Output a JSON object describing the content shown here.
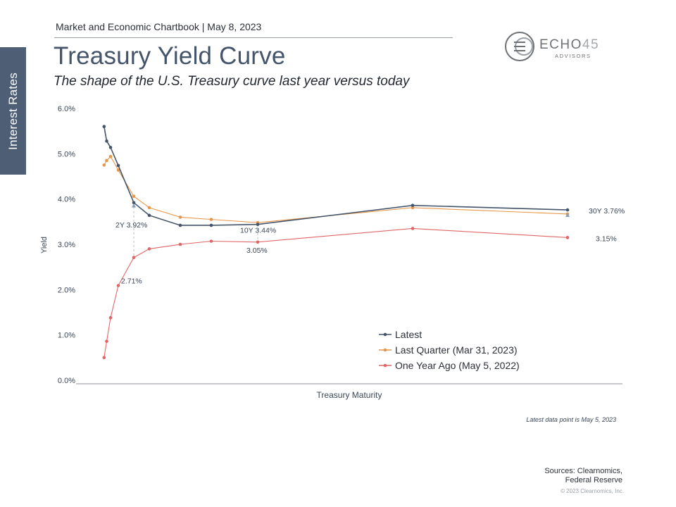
{
  "side_tab": "Interest Rates",
  "header": "Market and Economic Chartbook | May 8, 2023",
  "title": "Treasury Yield Curve",
  "subtitle": "The shape of the U.S. Treasury curve last year versus today",
  "logo": {
    "brand_left": "ECHO",
    "brand_right": "45",
    "tagline": "ADVISORS"
  },
  "footnote": "Latest data point is May 5, 2023",
  "sources_line1": "Sources: Clearnomics,",
  "sources_line2": "Federal Reserve",
  "copyright": "© 2023 Clearnomics, Inc.",
  "chart_data": {
    "type": "line",
    "title": "Treasury Yield Curve",
    "xlabel": "Treasury Maturity",
    "ylabel": "Yield",
    "x_unit": "years",
    "x": [
      0.083,
      0.25,
      0.5,
      1,
      2,
      3,
      5,
      7,
      10,
      20,
      30
    ],
    "ylim": [
      0,
      6
    ],
    "yticks": [
      "0.0%",
      "1.0%",
      "2.0%",
      "3.0%",
      "4.0%",
      "5.0%",
      "6.0%"
    ],
    "series": [
      {
        "name": "Latest",
        "color": "#44546a",
        "marker": "circle",
        "values": [
          5.6,
          5.28,
          5.14,
          4.74,
          3.92,
          3.64,
          3.42,
          3.42,
          3.44,
          3.86,
          3.76
        ]
      },
      {
        "name": "Last Quarter (Mar 31, 2023)",
        "color": "#e8964a",
        "marker": "circle",
        "values": [
          4.75,
          4.85,
          4.94,
          4.64,
          4.06,
          3.81,
          3.6,
          3.55,
          3.48,
          3.81,
          3.67
        ]
      },
      {
        "name": "One Year Ago (May 5, 2022)",
        "color": "#e06666",
        "marker": "circle",
        "values": [
          0.5,
          0.86,
          1.38,
          2.09,
          2.71,
          2.9,
          3.0,
          3.07,
          3.05,
          3.35,
          3.15
        ]
      }
    ],
    "annotations": [
      {
        "text": "2Y 3.92%",
        "x": 2,
        "y": 3.92,
        "series": "Latest"
      },
      {
        "text": "2.71%",
        "x": 2,
        "y": 2.71,
        "series": "One Year Ago (May 5, 2022)"
      },
      {
        "text": "10Y 3.44%",
        "x": 10,
        "y": 3.44,
        "series": "Latest"
      },
      {
        "text": "3.05%",
        "x": 10,
        "y": 3.05,
        "series": "One Year Ago (May 5, 2022)"
      },
      {
        "text": "30Y 3.76%",
        "x": 30,
        "y": 3.76,
        "series": "Latest"
      },
      {
        "text": "3.15%",
        "x": 30,
        "y": 3.15,
        "series": "One Year Ago (May 5, 2022)"
      }
    ],
    "legend_position": "bottom-right"
  }
}
